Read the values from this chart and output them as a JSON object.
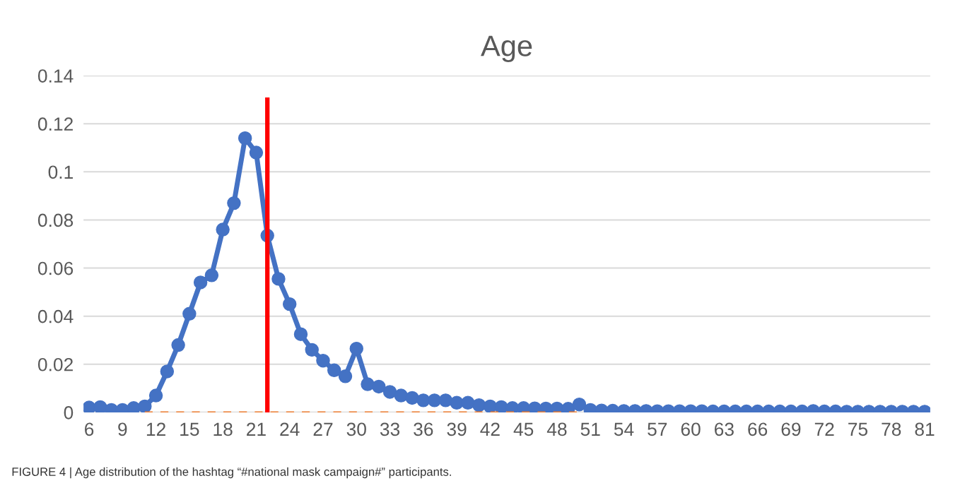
{
  "chart_data": {
    "type": "line",
    "title": "Age",
    "x": [
      6,
      7,
      8,
      9,
      10,
      11,
      12,
      13,
      14,
      15,
      16,
      17,
      18,
      19,
      20,
      21,
      22,
      23,
      24,
      25,
      26,
      27,
      28,
      29,
      30,
      31,
      32,
      33,
      34,
      35,
      36,
      37,
      38,
      39,
      40,
      41,
      42,
      43,
      44,
      45,
      46,
      47,
      48,
      49,
      50,
      51,
      52,
      53,
      54,
      55,
      56,
      57,
      58,
      59,
      60,
      61,
      62,
      63,
      64,
      65,
      66,
      67,
      68,
      69,
      70,
      71,
      72,
      73,
      74,
      75,
      76,
      77,
      78,
      79,
      80,
      81
    ],
    "series": [
      {
        "color": "#4472c4",
        "marker": "circle",
        "line_style": "solid",
        "values": [
          0.002,
          0.0022,
          0.001,
          0.001,
          0.0018,
          0.0025,
          0.007,
          0.017,
          0.028,
          0.041,
          0.054,
          0.057,
          0.076,
          0.087,
          0.114,
          0.108,
          0.0735,
          0.0555,
          0.045,
          0.0325,
          0.026,
          0.0215,
          0.0175,
          0.015,
          0.0265,
          0.0117,
          0.0107,
          0.0085,
          0.007,
          0.006,
          0.005,
          0.005,
          0.005,
          0.004,
          0.004,
          0.003,
          0.0025,
          0.0022,
          0.0018,
          0.0018,
          0.0017,
          0.0016,
          0.0016,
          0.0015,
          0.0033,
          0.001,
          0.0008,
          0.0007,
          0.0006,
          0.0006,
          0.0006,
          0.0005,
          0.0005,
          0.0005,
          0.0005,
          0.0005,
          0.0004,
          0.0004,
          0.0004,
          0.0004,
          0.0004,
          0.0004,
          0.0004,
          0.0004,
          0.0004,
          0.0006,
          0.0004,
          0.0004,
          0.0003,
          0.0003,
          0.0003,
          0.0003,
          0.0003,
          0.0003,
          0.0003,
          0.0003
        ]
      },
      {
        "color": "#ed7d31",
        "marker": "none",
        "line_style": "dashed",
        "x": [
          11,
          50
        ],
        "values": [
          0,
          0
        ]
      },
      {
        "color": "#ff0000",
        "marker": "none",
        "line_style": "solid",
        "x": [
          22,
          22
        ],
        "values": [
          0,
          0.13
        ]
      }
    ],
    "xlim": [
      5.5,
      81.5
    ],
    "xticks": [
      6,
      9,
      12,
      15,
      18,
      21,
      24,
      27,
      30,
      33,
      36,
      39,
      42,
      45,
      48,
      51,
      54,
      57,
      60,
      63,
      66,
      69,
      72,
      75,
      78,
      81
    ],
    "ylim": [
      0,
      0.14
    ],
    "yticks": [
      0,
      0.02,
      0.04,
      0.06,
      0.08,
      {
        "value": 0.1,
        "label": "0.1"
      },
      0.12,
      0.14
    ],
    "grid": "y",
    "annotations": [
      "FIGURE 4 | Age distribution of the hashtag “#national mask campaign#” participants."
    ]
  }
}
